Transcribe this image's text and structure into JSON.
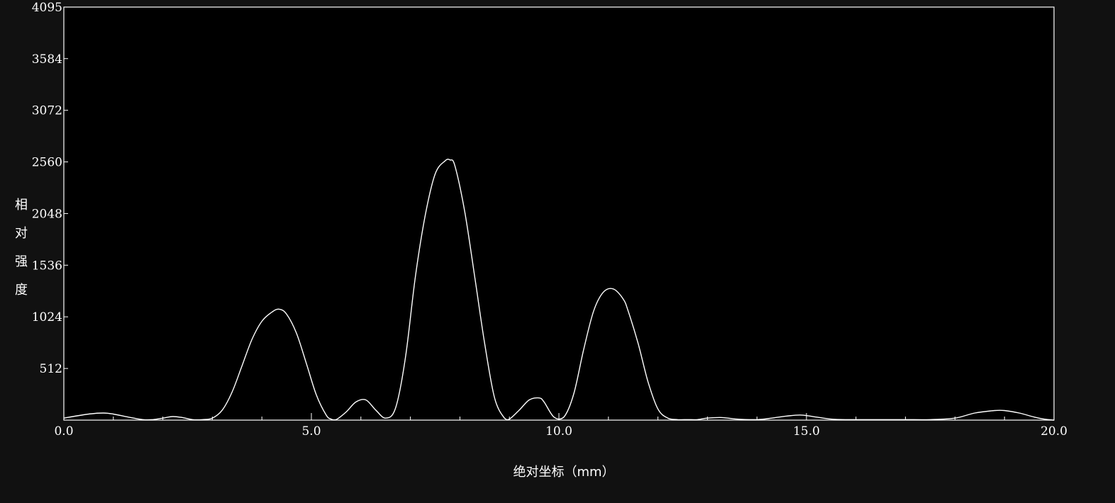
{
  "chart_data": {
    "type": "line",
    "xlabel": "绝对坐标（mm）",
    "ylabel": "相对强度",
    "xlim": [
      0,
      20
    ],
    "ylim": [
      0,
      4095
    ],
    "x_ticks": [
      {
        "value": 0,
        "label": "0.0"
      },
      {
        "value": 5,
        "label": "5.0"
      },
      {
        "value": 10,
        "label": "10.0"
      },
      {
        "value": 15,
        "label": "15.0"
      },
      {
        "value": 20,
        "label": "20.0"
      }
    ],
    "y_ticks": [
      {
        "value": 512,
        "label": "512"
      },
      {
        "value": 1024,
        "label": "1024"
      },
      {
        "value": 1536,
        "label": "1536"
      },
      {
        "value": 2048,
        "label": "2048"
      },
      {
        "value": 2560,
        "label": "2560"
      },
      {
        "value": 3072,
        "label": "3072"
      },
      {
        "value": 3584,
        "label": "3584"
      },
      {
        "value": 4095,
        "label": "4095"
      }
    ],
    "grid": false,
    "colors": {
      "background": "#000000",
      "line": "#ffffff",
      "axis": "#ffffff",
      "page": "#111111"
    },
    "series": [
      {
        "x": [
          0.0,
          0.5,
          0.8,
          1.0,
          1.3,
          1.6,
          1.8,
          2.0,
          2.2,
          2.4,
          2.6,
          2.8,
          3.0,
          3.2,
          3.4,
          3.6,
          3.8,
          4.0,
          4.2,
          4.35,
          4.5,
          4.7,
          4.9,
          5.1,
          5.3,
          5.4,
          5.5,
          5.7,
          5.9,
          6.1,
          6.3,
          6.5,
          6.7,
          6.9,
          7.1,
          7.3,
          7.5,
          7.7,
          7.8,
          7.9,
          8.1,
          8.3,
          8.5,
          8.7,
          8.9,
          9.0,
          9.2,
          9.4,
          9.6,
          9.7,
          9.9,
          10.1,
          10.3,
          10.5,
          10.7,
          10.9,
          11.1,
          11.3,
          11.4,
          11.6,
          11.8,
          12.0,
          12.2,
          12.4,
          12.6,
          12.8,
          13.0,
          13.3,
          13.6,
          14.0,
          14.3,
          14.6,
          14.9,
          15.2,
          15.5,
          15.8,
          16.5,
          17.0,
          17.5,
          18.0,
          18.4,
          18.8,
          19.0,
          19.3,
          19.6,
          19.8,
          20.0
        ],
        "y": [
          20,
          60,
          70,
          60,
          30,
          5,
          5,
          20,
          35,
          25,
          5,
          5,
          20,
          100,
          280,
          540,
          800,
          980,
          1070,
          1100,
          1050,
          860,
          560,
          250,
          50,
          10,
          5,
          80,
          180,
          200,
          100,
          20,
          120,
          620,
          1420,
          2030,
          2440,
          2570,
          2580,
          2520,
          2060,
          1420,
          760,
          220,
          20,
          10,
          100,
          200,
          220,
          180,
          30,
          30,
          260,
          700,
          1080,
          1270,
          1300,
          1200,
          1080,
          760,
          380,
          110,
          20,
          5,
          5,
          5,
          20,
          25,
          10,
          5,
          20,
          40,
          50,
          30,
          10,
          5,
          5,
          5,
          5,
          20,
          70,
          95,
          95,
          70,
          30,
          10,
          0
        ]
      }
    ]
  }
}
